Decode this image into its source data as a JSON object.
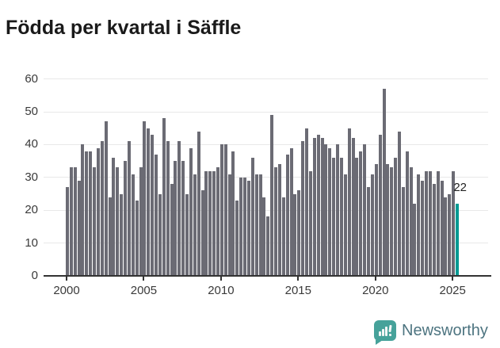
{
  "title": "Födda per kvartal i Säffle",
  "chart_data": {
    "type": "bar",
    "title": "Födda per kvartal i Säffle",
    "xlabel": "",
    "ylabel": "",
    "ylim": [
      0,
      60
    ],
    "y_ticks": [
      0,
      10,
      20,
      30,
      40,
      50,
      60
    ],
    "x_tick_labels": [
      "2000",
      "2005",
      "2010",
      "2015",
      "2020",
      "2025"
    ],
    "grid": true,
    "start_period": "2000Q1",
    "end_period": "2025Q2",
    "frequency": "quarterly",
    "values": [
      27,
      33,
      33,
      29,
      40,
      38,
      38,
      33,
      39,
      41,
      47,
      24,
      36,
      33,
      25,
      35,
      41,
      31,
      23,
      33,
      47,
      45,
      43,
      37,
      25,
      48,
      41,
      28,
      35,
      41,
      35,
      25,
      39,
      31,
      44,
      26,
      32,
      32,
      32,
      33,
      40,
      40,
      31,
      38,
      23,
      30,
      30,
      29,
      36,
      31,
      31,
      24,
      18,
      49,
      33,
      34,
      24,
      37,
      39,
      25,
      26,
      41,
      45,
      32,
      42,
      43,
      42,
      40,
      39,
      36,
      40,
      36,
      31,
      45,
      42,
      36,
      38,
      40,
      27,
      31,
      34,
      43,
      57,
      34,
      33,
      36,
      44,
      27,
      38,
      33,
      22,
      31,
      29,
      32,
      32,
      28,
      32,
      29,
      24,
      25,
      32,
      22
    ],
    "bar_color": "#6b6b74",
    "highlight": {
      "index": 101,
      "value": 22,
      "label": "22",
      "color": "#009a93"
    }
  },
  "annotation": {
    "last_value_label": "22"
  },
  "branding": {
    "name": "Newsworthy",
    "icon": "newsworthy-bubble-chart-icon",
    "icon_color": "#46a29a",
    "text_color": "#4d7480"
  }
}
